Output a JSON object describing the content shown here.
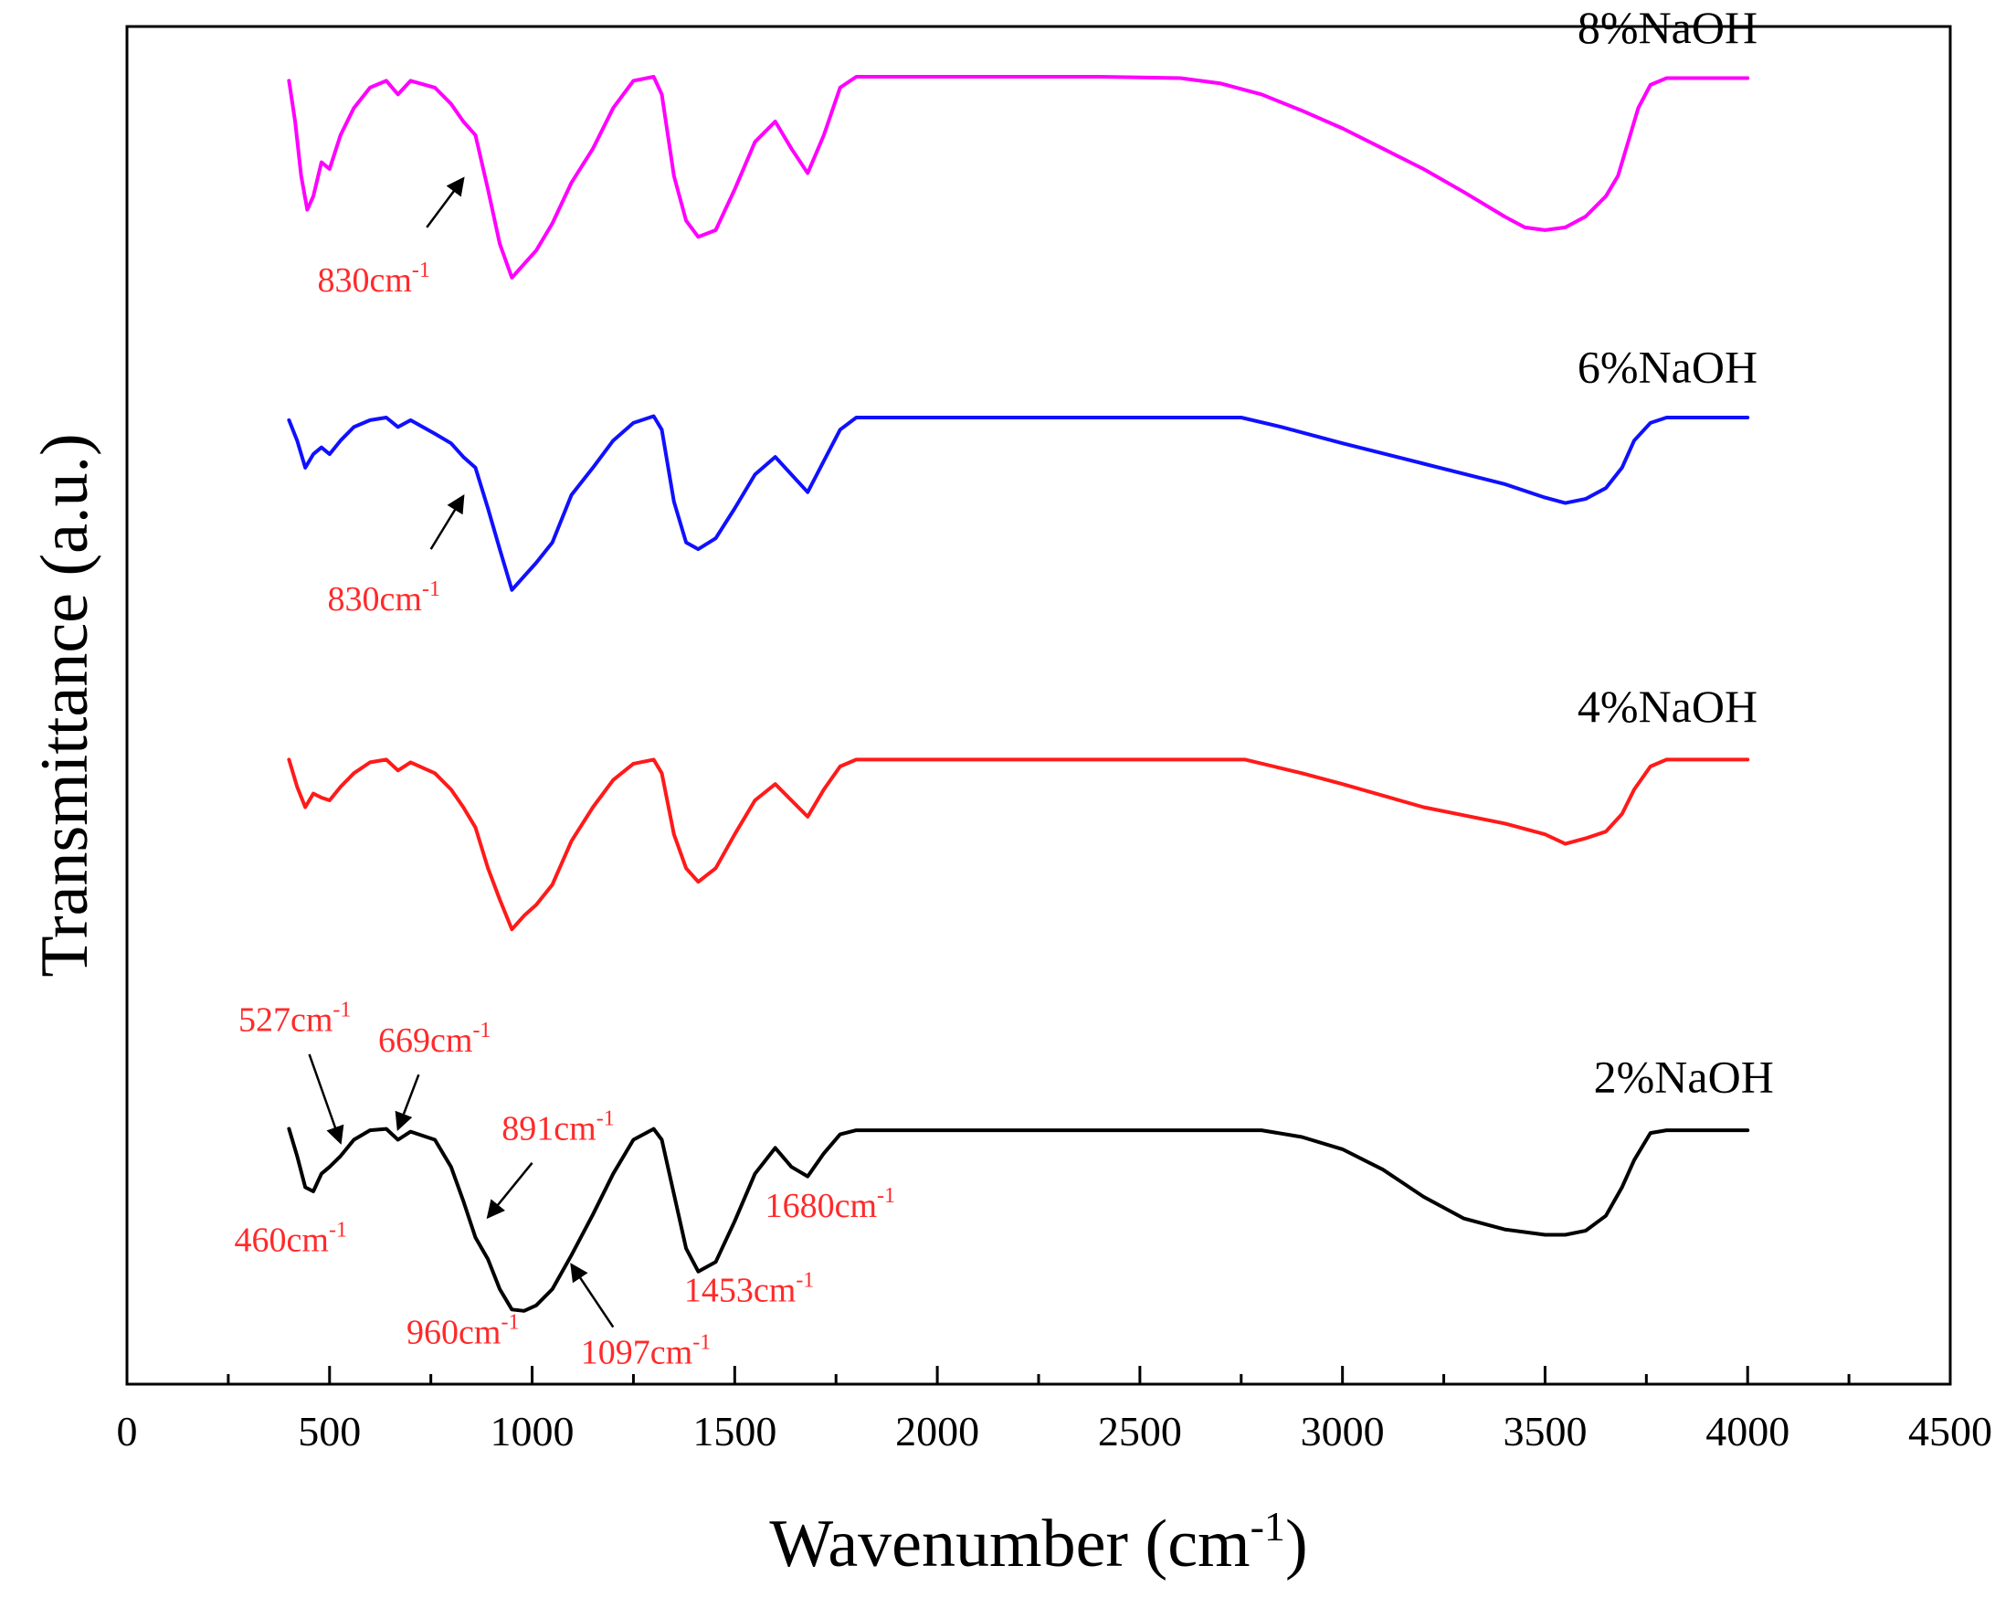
{
  "chart_data": {
    "type": "line",
    "xlabel": "Wavenumber (cm",
    "xlabel_sup": "-1",
    "xlabel_end": ")",
    "ylabel": "Transmittance (a.u.)",
    "xlim": [
      0,
      4500
    ],
    "ylim": [
      0,
      100
    ],
    "xticks": [
      0,
      500,
      1000,
      1500,
      2000,
      2500,
      3000,
      3500,
      4000,
      4500
    ],
    "grid": false,
    "series": [
      {
        "name": "8%NaOH",
        "color": "#ff00ff",
        "points": [
          [
            400,
            96
          ],
          [
            415,
            93
          ],
          [
            430,
            89
          ],
          [
            445,
            86.5
          ],
          [
            460,
            87.5
          ],
          [
            480,
            90
          ],
          [
            500,
            89.5
          ],
          [
            527,
            92
          ],
          [
            560,
            94
          ],
          [
            600,
            95.5
          ],
          [
            640,
            96
          ],
          [
            669,
            95
          ],
          [
            700,
            96
          ],
          [
            760,
            95.5
          ],
          [
            800,
            94.3
          ],
          [
            830,
            93
          ],
          [
            860,
            92
          ],
          [
            891,
            88
          ],
          [
            920,
            84
          ],
          [
            950,
            81.5
          ],
          [
            980,
            82.5
          ],
          [
            1010,
            83.5
          ],
          [
            1050,
            85.5
          ],
          [
            1097,
            88.5
          ],
          [
            1150,
            91
          ],
          [
            1200,
            94
          ],
          [
            1250,
            96
          ],
          [
            1300,
            96.3
          ],
          [
            1320,
            95
          ],
          [
            1350,
            89
          ],
          [
            1380,
            85.7
          ],
          [
            1410,
            84.5
          ],
          [
            1453,
            85
          ],
          [
            1500,
            88
          ],
          [
            1550,
            91.5
          ],
          [
            1600,
            93
          ],
          [
            1640,
            91
          ],
          [
            1680,
            89.2
          ],
          [
            1720,
            92
          ],
          [
            1760,
            95.5
          ],
          [
            1800,
            96.3
          ],
          [
            2000,
            96.3
          ],
          [
            2200,
            96.3
          ],
          [
            2400,
            96.3
          ],
          [
            2600,
            96.2
          ],
          [
            2700,
            95.8
          ],
          [
            2800,
            95
          ],
          [
            2900,
            93.8
          ],
          [
            3000,
            92.5
          ],
          [
            3100,
            91
          ],
          [
            3200,
            89.5
          ],
          [
            3300,
            87.8
          ],
          [
            3400,
            86
          ],
          [
            3450,
            85.2
          ],
          [
            3500,
            85
          ],
          [
            3550,
            85.2
          ],
          [
            3600,
            86
          ],
          [
            3650,
            87.5
          ],
          [
            3680,
            89
          ],
          [
            3700,
            91
          ],
          [
            3730,
            94
          ],
          [
            3760,
            95.7
          ],
          [
            3800,
            96.2
          ],
          [
            4000,
            96.2
          ]
        ]
      },
      {
        "name": "6%NaOH",
        "color": "#1010ff",
        "points": [
          [
            400,
            71
          ],
          [
            420,
            69.5
          ],
          [
            440,
            67.5
          ],
          [
            460,
            68.5
          ],
          [
            480,
            69
          ],
          [
            500,
            68.5
          ],
          [
            527,
            69.5
          ],
          [
            560,
            70.5
          ],
          [
            600,
            71
          ],
          [
            640,
            71.2
          ],
          [
            669,
            70.5
          ],
          [
            700,
            71
          ],
          [
            760,
            70
          ],
          [
            800,
            69.3
          ],
          [
            830,
            68.3
          ],
          [
            860,
            67.5
          ],
          [
            891,
            64.5
          ],
          [
            920,
            61.5
          ],
          [
            950,
            58.5
          ],
          [
            980,
            59.5
          ],
          [
            1010,
            60.5
          ],
          [
            1050,
            62
          ],
          [
            1097,
            65.5
          ],
          [
            1150,
            67.5
          ],
          [
            1200,
            69.5
          ],
          [
            1250,
            70.8
          ],
          [
            1300,
            71.3
          ],
          [
            1320,
            70.3
          ],
          [
            1350,
            65
          ],
          [
            1380,
            62
          ],
          [
            1410,
            61.5
          ],
          [
            1453,
            62.3
          ],
          [
            1500,
            64.5
          ],
          [
            1550,
            67
          ],
          [
            1600,
            68.3
          ],
          [
            1640,
            67
          ],
          [
            1680,
            65.7
          ],
          [
            1720,
            68
          ],
          [
            1760,
            70.3
          ],
          [
            1800,
            71.2
          ],
          [
            2000,
            71.2
          ],
          [
            2200,
            71.2
          ],
          [
            2400,
            71.2
          ],
          [
            2600,
            71.2
          ],
          [
            2750,
            71.2
          ],
          [
            2850,
            70.5
          ],
          [
            3000,
            69.3
          ],
          [
            3200,
            67.8
          ],
          [
            3400,
            66.3
          ],
          [
            3500,
            65.3
          ],
          [
            3550,
            64.9
          ],
          [
            3600,
            65.2
          ],
          [
            3650,
            66
          ],
          [
            3690,
            67.5
          ],
          [
            3720,
            69.5
          ],
          [
            3760,
            70.8
          ],
          [
            3800,
            71.2
          ],
          [
            4000,
            71.2
          ]
        ]
      },
      {
        "name": "4%NaOH",
        "color": "#ff1a1a",
        "points": [
          [
            400,
            46
          ],
          [
            420,
            44
          ],
          [
            440,
            42.5
          ],
          [
            460,
            43.5
          ],
          [
            480,
            43.2
          ],
          [
            500,
            43
          ],
          [
            527,
            44
          ],
          [
            560,
            45
          ],
          [
            600,
            45.8
          ],
          [
            640,
            46
          ],
          [
            669,
            45.2
          ],
          [
            700,
            45.8
          ],
          [
            760,
            45
          ],
          [
            800,
            43.8
          ],
          [
            830,
            42.5
          ],
          [
            860,
            41
          ],
          [
            891,
            38
          ],
          [
            920,
            35.7
          ],
          [
            950,
            33.5
          ],
          [
            980,
            34.5
          ],
          [
            1010,
            35.3
          ],
          [
            1050,
            36.8
          ],
          [
            1097,
            40
          ],
          [
            1150,
            42.5
          ],
          [
            1200,
            44.5
          ],
          [
            1250,
            45.7
          ],
          [
            1300,
            46
          ],
          [
            1320,
            45
          ],
          [
            1350,
            40.5
          ],
          [
            1380,
            38
          ],
          [
            1410,
            37
          ],
          [
            1453,
            38
          ],
          [
            1500,
            40.5
          ],
          [
            1550,
            43
          ],
          [
            1600,
            44.2
          ],
          [
            1640,
            43
          ],
          [
            1680,
            41.8
          ],
          [
            1720,
            43.8
          ],
          [
            1760,
            45.5
          ],
          [
            1800,
            46
          ],
          [
            2000,
            46
          ],
          [
            2200,
            46
          ],
          [
            2400,
            46
          ],
          [
            2600,
            46
          ],
          [
            2760,
            46
          ],
          [
            2900,
            45
          ],
          [
            3000,
            44.2
          ],
          [
            3200,
            42.5
          ],
          [
            3400,
            41.3
          ],
          [
            3500,
            40.5
          ],
          [
            3550,
            39.8
          ],
          [
            3600,
            40.2
          ],
          [
            3650,
            40.7
          ],
          [
            3690,
            42
          ],
          [
            3720,
            43.8
          ],
          [
            3760,
            45.5
          ],
          [
            3800,
            46
          ],
          [
            4000,
            46
          ]
        ]
      },
      {
        "name": "2%NaOH",
        "color": "#000000",
        "points": [
          [
            400,
            18.8
          ],
          [
            420,
            16.8
          ],
          [
            440,
            14.5
          ],
          [
            460,
            14.2
          ],
          [
            480,
            15.5
          ],
          [
            500,
            16
          ],
          [
            527,
            16.8
          ],
          [
            560,
            18
          ],
          [
            600,
            18.7
          ],
          [
            640,
            18.8
          ],
          [
            669,
            18
          ],
          [
            700,
            18.6
          ],
          [
            760,
            18
          ],
          [
            800,
            16
          ],
          [
            830,
            13.5
          ],
          [
            860,
            10.8
          ],
          [
            891,
            9.2
          ],
          [
            920,
            7
          ],
          [
            950,
            5.5
          ],
          [
            980,
            5.4
          ],
          [
            1010,
            5.8
          ],
          [
            1050,
            7
          ],
          [
            1097,
            9.5
          ],
          [
            1150,
            12.5
          ],
          [
            1200,
            15.5
          ],
          [
            1250,
            18
          ],
          [
            1300,
            18.8
          ],
          [
            1320,
            18
          ],
          [
            1350,
            14
          ],
          [
            1380,
            10
          ],
          [
            1410,
            8.3
          ],
          [
            1453,
            9
          ],
          [
            1500,
            12
          ],
          [
            1550,
            15.5
          ],
          [
            1600,
            17.4
          ],
          [
            1640,
            16
          ],
          [
            1680,
            15.3
          ],
          [
            1720,
            17
          ],
          [
            1760,
            18.4
          ],
          [
            1800,
            18.7
          ],
          [
            2000,
            18.7
          ],
          [
            2200,
            18.7
          ],
          [
            2400,
            18.7
          ],
          [
            2600,
            18.7
          ],
          [
            2800,
            18.7
          ],
          [
            2900,
            18.2
          ],
          [
            3000,
            17.3
          ],
          [
            3100,
            15.8
          ],
          [
            3200,
            13.8
          ],
          [
            3300,
            12.2
          ],
          [
            3400,
            11.4
          ],
          [
            3500,
            11
          ],
          [
            3550,
            11
          ],
          [
            3600,
            11.3
          ],
          [
            3650,
            12.4
          ],
          [
            3690,
            14.5
          ],
          [
            3720,
            16.5
          ],
          [
            3760,
            18.5
          ],
          [
            3800,
            18.7
          ],
          [
            4000,
            18.7
          ]
        ]
      }
    ],
    "series_labels": [
      {
        "text": "8%NaOH",
        "x": 3580,
        "y": 98.8
      },
      {
        "text": "6%NaOH",
        "x": 3580,
        "y": 73.8
      },
      {
        "text": "4%NaOH",
        "x": 3580,
        "y": 48.8
      },
      {
        "text": "2%NaOH",
        "x": 3620,
        "y": 21.5
      }
    ],
    "annotations": [
      {
        "text": "830cm",
        "sup": "-1",
        "x": 470,
        "y": 80.5,
        "arrow_from": [
          740,
          85.2
        ],
        "arrow_to": [
          830,
          88.8
        ]
      },
      {
        "text": "830cm",
        "sup": "-1",
        "x": 495,
        "y": 57,
        "arrow_from": [
          750,
          61.5
        ],
        "arrow_to": [
          830,
          65.4
        ]
      },
      {
        "text": "527cm",
        "sup": "-1",
        "x": 275,
        "y": 26,
        "arrow_from": [
          450,
          24.3
        ],
        "arrow_to": [
          527,
          17.8
        ]
      },
      {
        "text": "669cm",
        "sup": "-1",
        "x": 620,
        "y": 24.5,
        "arrow_from": [
          720,
          22.8
        ],
        "arrow_to": [
          669,
          18.8
        ]
      },
      {
        "text": "891cm",
        "sup": "-1",
        "x": 925,
        "y": 18,
        "arrow_from": [
          1000,
          16.3
        ],
        "arrow_to": [
          891,
          12.3
        ]
      },
      {
        "text": "460cm",
        "sup": "-1",
        "x": 265,
        "y": 9.8
      },
      {
        "text": "960cm",
        "sup": "-1",
        "x": 690,
        "y": 3
      },
      {
        "text": "1097cm",
        "sup": "-1",
        "x": 1120,
        "y": 1.5,
        "arrow_from": [
          1200,
          4.2
        ],
        "arrow_to": [
          1097,
          8.8
        ]
      },
      {
        "text": "1453cm",
        "sup": "-1",
        "x": 1375,
        "y": 6.1
      },
      {
        "text": "1680cm",
        "sup": "-1",
        "x": 1575,
        "y": 12.3
      }
    ]
  }
}
